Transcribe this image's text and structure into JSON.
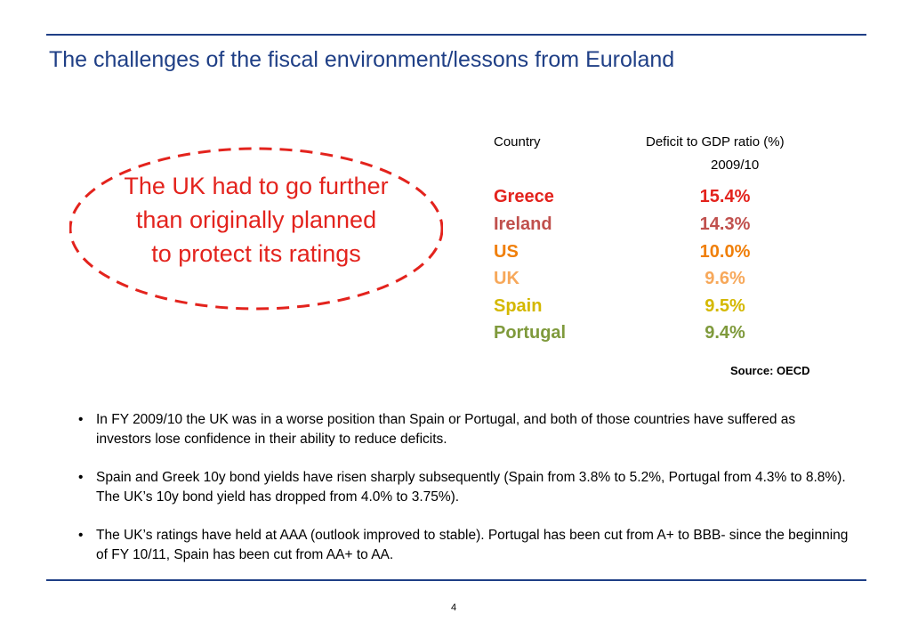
{
  "title": "The challenges of the fiscal environment/lessons from Euroland",
  "callout": {
    "text": "The UK had to go further than originally planned to protect its ratings",
    "color": "#e3231d"
  },
  "table": {
    "header_country": "Country",
    "header_ratio": "Deficit to GDP ratio (%)",
    "header_year": "2009/10",
    "rows": [
      {
        "country": "Greece",
        "value": "15.4%",
        "color": "#e3231d"
      },
      {
        "country": "Ireland",
        "value": "14.3%",
        "color": "#c0504d"
      },
      {
        "country": "US",
        "value": "10.0%",
        "color": "#f07f09"
      },
      {
        "country": "UK",
        "value": "9.6%",
        "color": "#f7a85a"
      },
      {
        "country": "Spain",
        "value": "9.5%",
        "color": "#d4b800"
      },
      {
        "country": "Portugal",
        "value": "9.4%",
        "color": "#7f9a3c"
      }
    ],
    "source": "Source: OECD"
  },
  "bullets": [
    "In FY 2009/10 the UK was in a worse position than Spain or Portugal, and both of those countries have suffered as investors lose confidence in their ability to reduce deficits.",
    "Spain and Greek 10y bond yields have risen sharply subsequently (Spain from 3.8% to 5.2%, Portugal from 4.3% to 8.8%). The UK’s 10y bond yield has dropped from 4.0% to 3.75%).",
    "The UK’s ratings have held at AAA (outlook improved to stable). Portugal has been cut from A+ to BBB- since the beginning of FY 10/11, Spain has been cut from AA+ to AA."
  ],
  "bullet_glyph": "•",
  "page_number": "4",
  "colors": {
    "rule": "#1f3f86",
    "title": "#1f3f86"
  }
}
